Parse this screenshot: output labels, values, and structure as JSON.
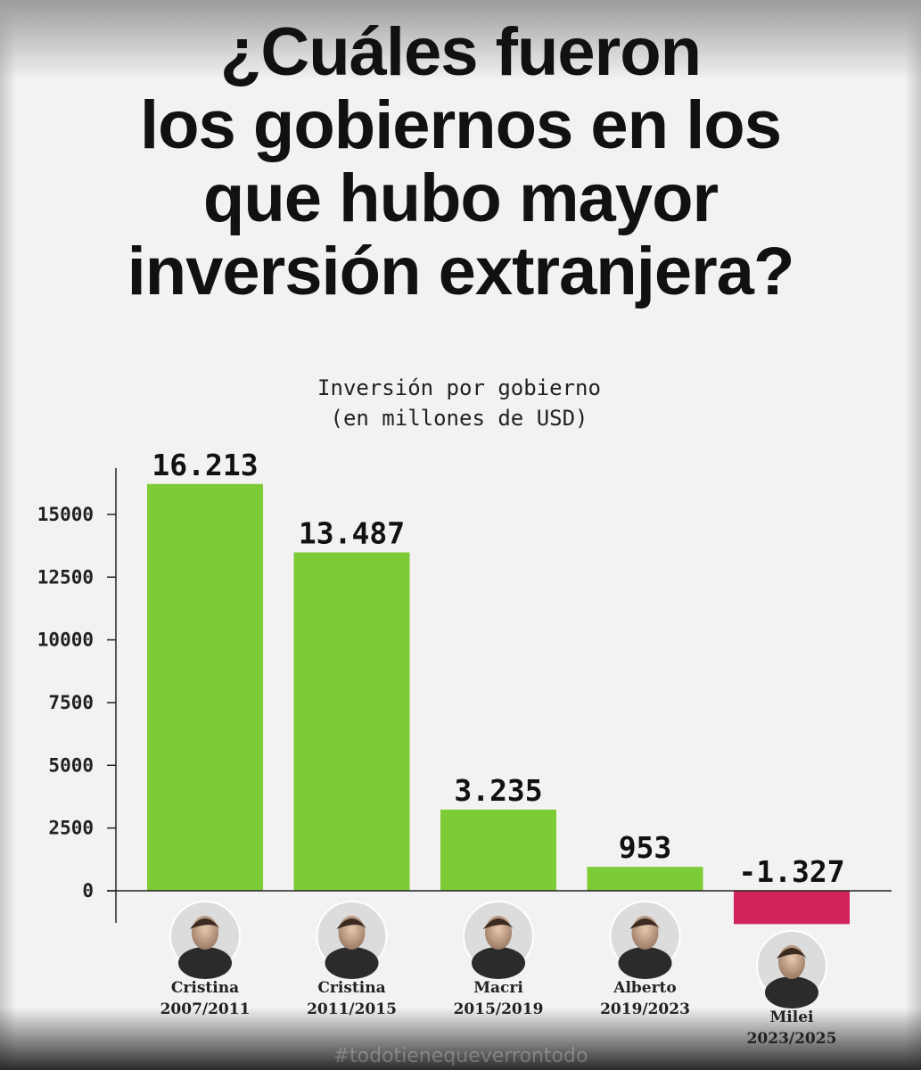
{
  "title_lines": [
    "¿Cuáles fueron",
    "los gobiernos en los",
    "que hubo mayor",
    "inversión extranjera?"
  ],
  "watermark": "#todotienequeverrontodo",
  "colors": {
    "positive": "#7dcb37",
    "negative": "#d1245a",
    "axis": "#222222"
  },
  "chart_data": {
    "type": "bar",
    "title": "Inversión por gobierno",
    "subtitle": "(en millones de USD)",
    "xlabel": "",
    "ylabel": "",
    "ylim": [
      -1327,
      16213
    ],
    "yticks": [
      0,
      2500,
      5000,
      7500,
      10000,
      12500,
      15000
    ],
    "categories": [
      {
        "name": "Cristina",
        "period": "2007/2011",
        "icon": "portrait-cristina-icon"
      },
      {
        "name": "Cristina",
        "period": "2011/2015",
        "icon": "portrait-cristina-icon"
      },
      {
        "name": "Macri",
        "period": "2015/2019",
        "icon": "portrait-macri-icon"
      },
      {
        "name": "Alberto",
        "period": "2019/2023",
        "icon": "portrait-alberto-icon"
      },
      {
        "name": "Milei",
        "period": "2023/2025",
        "icon": "portrait-milei-icon"
      }
    ],
    "values": [
      16213,
      13487,
      3235,
      953,
      -1327
    ],
    "value_labels": [
      "16.213",
      "13.487",
      "3.235",
      "953",
      "-1.327"
    ]
  }
}
